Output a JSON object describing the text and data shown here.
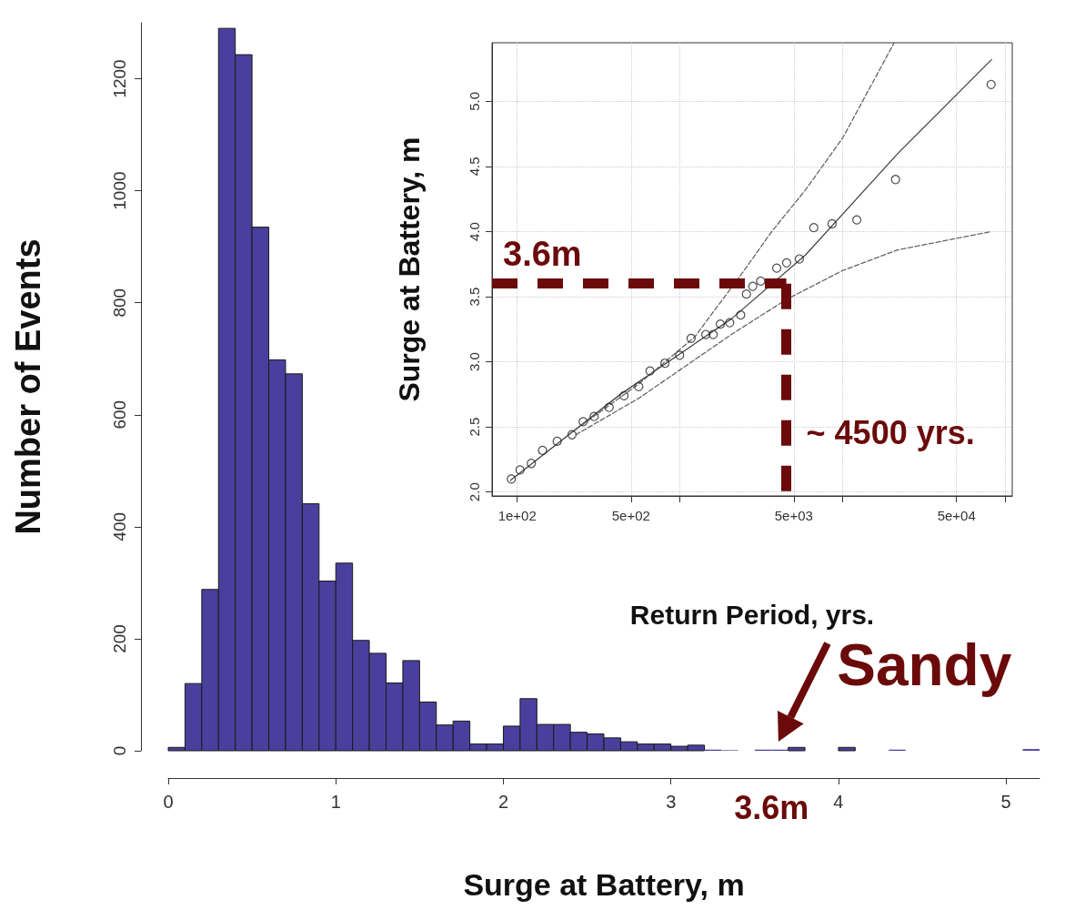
{
  "chart_data": [
    {
      "type": "histogram",
      "xlabel": "Surge at Battery, m",
      "ylabel": "Number of Events",
      "color": "#4a3f9c",
      "bins": [
        0,
        0.1,
        0.2,
        0.3,
        0.4,
        0.5,
        0.6,
        0.7,
        0.8,
        0.9,
        1.0,
        1.1,
        1.2,
        1.3,
        1.4,
        1.5,
        1.6,
        1.7,
        1.8,
        1.9,
        2.0,
        2.1,
        2.2,
        2.3,
        2.4,
        2.5,
        2.6,
        2.7,
        2.8,
        2.9,
        3.0,
        3.1,
        3.2,
        3.3,
        3.4,
        3.5,
        3.6,
        3.7,
        3.8,
        3.9,
        4.0,
        4.1,
        4.2,
        4.3,
        4.4,
        4.5,
        4.6,
        4.7,
        4.8,
        4.9,
        5.0,
        5.1,
        5.2
      ],
      "values": [
        6,
        120,
        288,
        1290,
        1243,
        935,
        698,
        673,
        441,
        303,
        335,
        197,
        174,
        121,
        161,
        87,
        46,
        53,
        12,
        12,
        44,
        93,
        47,
        47,
        33,
        30,
        23,
        16,
        12,
        12,
        8,
        10,
        2,
        1,
        0,
        2,
        2,
        6,
        0,
        0,
        6,
        0,
        0,
        2,
        0,
        0,
        0,
        0,
        0,
        0,
        0,
        3
      ],
      "xlim": [
        0,
        5.2
      ],
      "xticks": [
        0,
        1,
        2,
        3,
        4,
        5
      ],
      "ylim": [
        0,
        1300
      ],
      "yticks": [
        0,
        200,
        400,
        600,
        800,
        1000,
        1200
      ],
      "annotations": [
        {
          "text": "Sandy",
          "x": 3.6,
          "y": 0
        },
        "3.6m"
      ]
    },
    {
      "type": "scatter",
      "xlabel": "Return Period, yrs.",
      "ylabel": "Surge at Battery, m",
      "log": "x",
      "grid": true,
      "xlim": [
        70,
        110000
      ],
      "xticks": [
        {
          "value": 100,
          "label": "1e+02"
        },
        {
          "value": 500,
          "label": "5e+02"
        },
        {
          "value": 1000,
          "label": null
        },
        {
          "value": 5000,
          "label": "5e+03"
        },
        {
          "value": 10000,
          "label": null
        },
        {
          "value": 50000,
          "label": "5e+04"
        },
        {
          "value": 100000,
          "label": null
        }
      ],
      "ylim": [
        1.97,
        5.45
      ],
      "yticks": [
        {
          "value": 2,
          "label": "2.0"
        },
        {
          "value": 2.5,
          "label": "2.5"
        },
        {
          "value": 3,
          "label": "3.0"
        },
        {
          "value": 3.5,
          "label": "3.5"
        },
        {
          "value": 4,
          "label": "4.0"
        },
        {
          "value": 4.5,
          "label": "4.5"
        },
        {
          "value": 5,
          "label": "5.0"
        }
      ],
      "series": [
        {
          "type": "scatter",
          "marker": "circle",
          "color": "#222222",
          "x": [
            92,
            104,
            122,
            143,
            176,
            217,
            254,
            297,
            367,
            453,
            558,
            654,
            808,
            995,
            1170,
            1440,
            1600,
            1770,
            2020,
            2360,
            2560,
            2800,
            3130,
            3930,
            4520,
            5410,
            6640,
            8600,
            12200,
            21100,
            81600
          ],
          "values": [
            2.1,
            2.17,
            2.22,
            2.32,
            2.39,
            2.44,
            2.54,
            2.58,
            2.65,
            2.74,
            2.81,
            2.93,
            2.99,
            3.05,
            3.18,
            3.21,
            3.21,
            3.29,
            3.3,
            3.36,
            3.52,
            3.58,
            3.62,
            3.72,
            3.76,
            3.79,
            4.03,
            4.06,
            4.09,
            4.4,
            5.13
          ]
        },
        {
          "type": "line",
          "marker": "none",
          "line_style": "solid",
          "color": "#444444",
          "x": [
            91,
            430,
            2070,
            5900,
            21800,
            82000
          ],
          "values": [
            2.09,
            2.75,
            3.33,
            3.82,
            4.6,
            5.32
          ]
        },
        {
          "type": "line",
          "marker": "none",
          "line_style": "dashed",
          "color": "#666666",
          "x": [
            229,
            558,
            1230,
            2440,
            3660,
            5900,
            10000,
            20700
          ],
          "values": [
            2.48,
            2.83,
            3.19,
            3.69,
            4.0,
            4.32,
            4.72,
            5.45
          ]
        },
        {
          "type": "line",
          "marker": "none",
          "line_style": "dashed",
          "color": "#666666",
          "x": [
            229,
            558,
            2070,
            4520,
            9950,
            21800,
            81600
          ],
          "values": [
            2.44,
            2.72,
            3.21,
            3.48,
            3.7,
            3.86,
            4.0
          ]
        }
      ],
      "ref_lines": [
        {
          "axis": "y",
          "value": 3.6,
          "label": "3.6m",
          "color": "#6b0a0a",
          "line_style": "dashed"
        },
        {
          "axis": "x",
          "value": 4500,
          "label": "~ 4500 yrs.",
          "color": "#6b0a0a",
          "line_style": "dashed"
        }
      ]
    }
  ]
}
